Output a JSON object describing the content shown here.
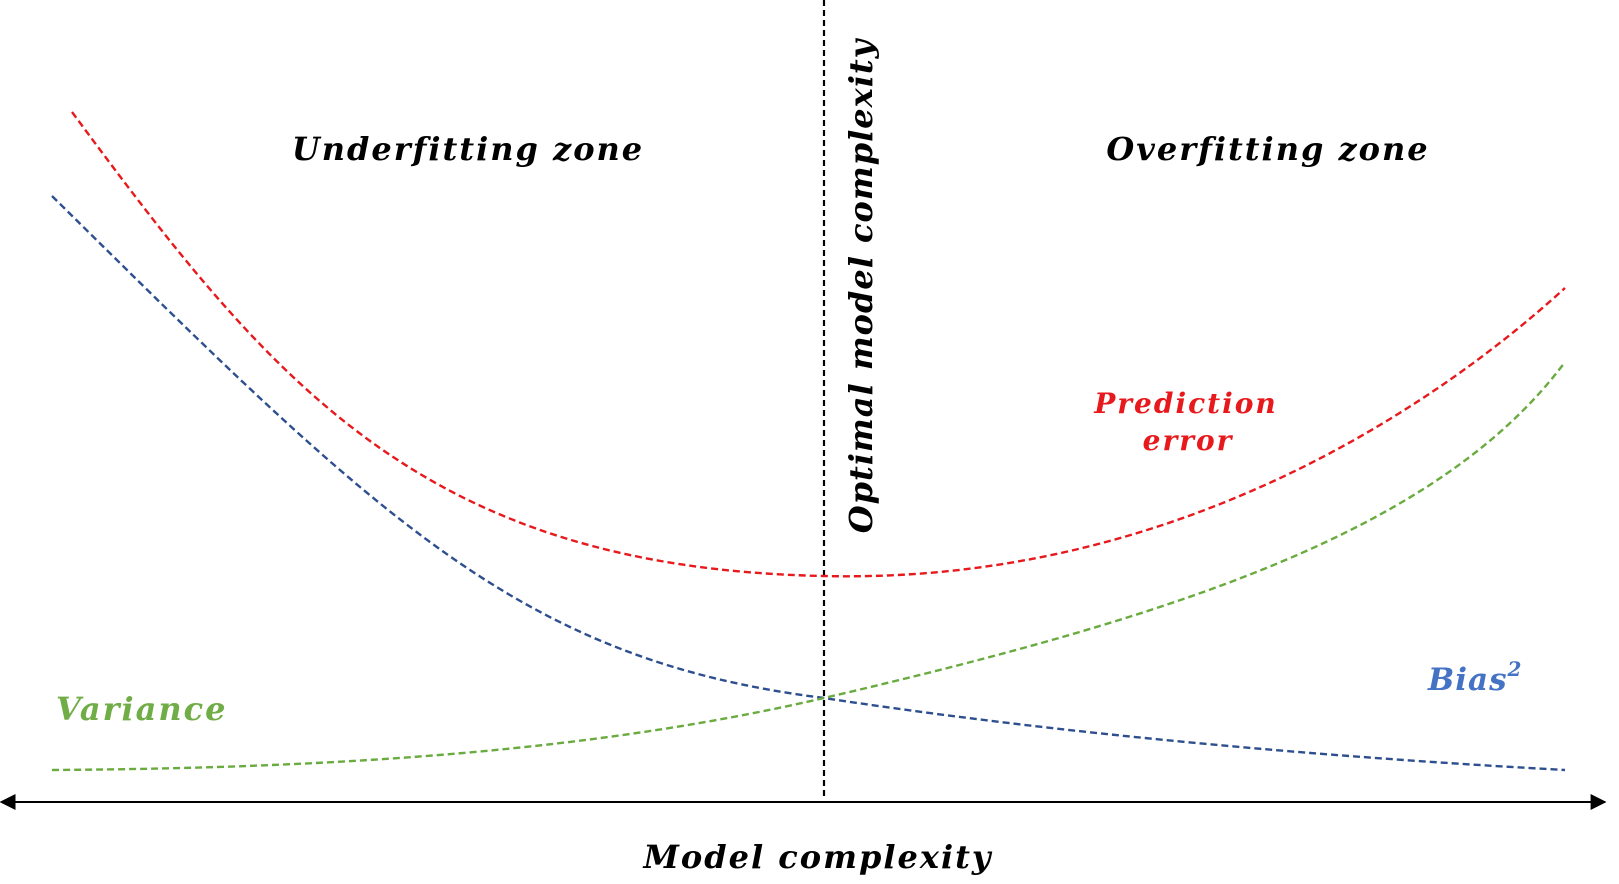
{
  "diagram": {
    "title_axis": "Model complexity",
    "zones": {
      "left": "Underfitting zone",
      "right": "Overfitting zone"
    },
    "divider_label": "Optimal model complexity",
    "curves": {
      "prediction_error": {
        "label_line1": "Prediction",
        "label_line2": "error",
        "color": "#e8191c"
      },
      "bias": {
        "label": "Bias",
        "superscript": "2",
        "color": "#2e4f8f",
        "label_color": "#4472c4"
      },
      "variance": {
        "label": "Variance",
        "color": "#6aab3f",
        "label_color": "#70ad47"
      }
    },
    "text_color": "#000000"
  }
}
